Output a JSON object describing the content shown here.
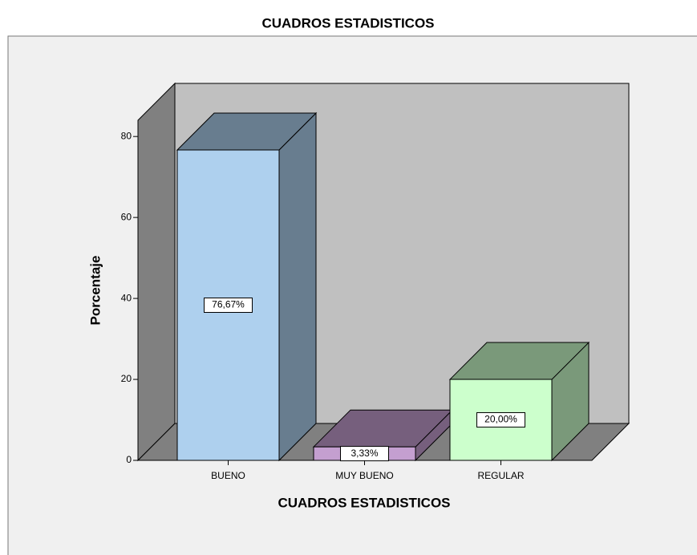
{
  "chart_data": {
    "type": "bar3d",
    "title": "CUADROS ESTADISTICOS",
    "categories": [
      "BUENO",
      "MUY BUENO",
      "REGULAR"
    ],
    "values": [
      76.67,
      3.33,
      20.0
    ],
    "value_labels": [
      "76,67%",
      "3,33%",
      "20,00%"
    ],
    "colors": [
      "#aed0ee",
      "#c49fd0",
      "#ccffcc"
    ],
    "x_label": "CUADROS ESTADISTICOS",
    "y_label": "Porcentaje",
    "ylim": [
      0,
      84
    ],
    "yticks": [
      0,
      20,
      40,
      60,
      80
    ]
  }
}
